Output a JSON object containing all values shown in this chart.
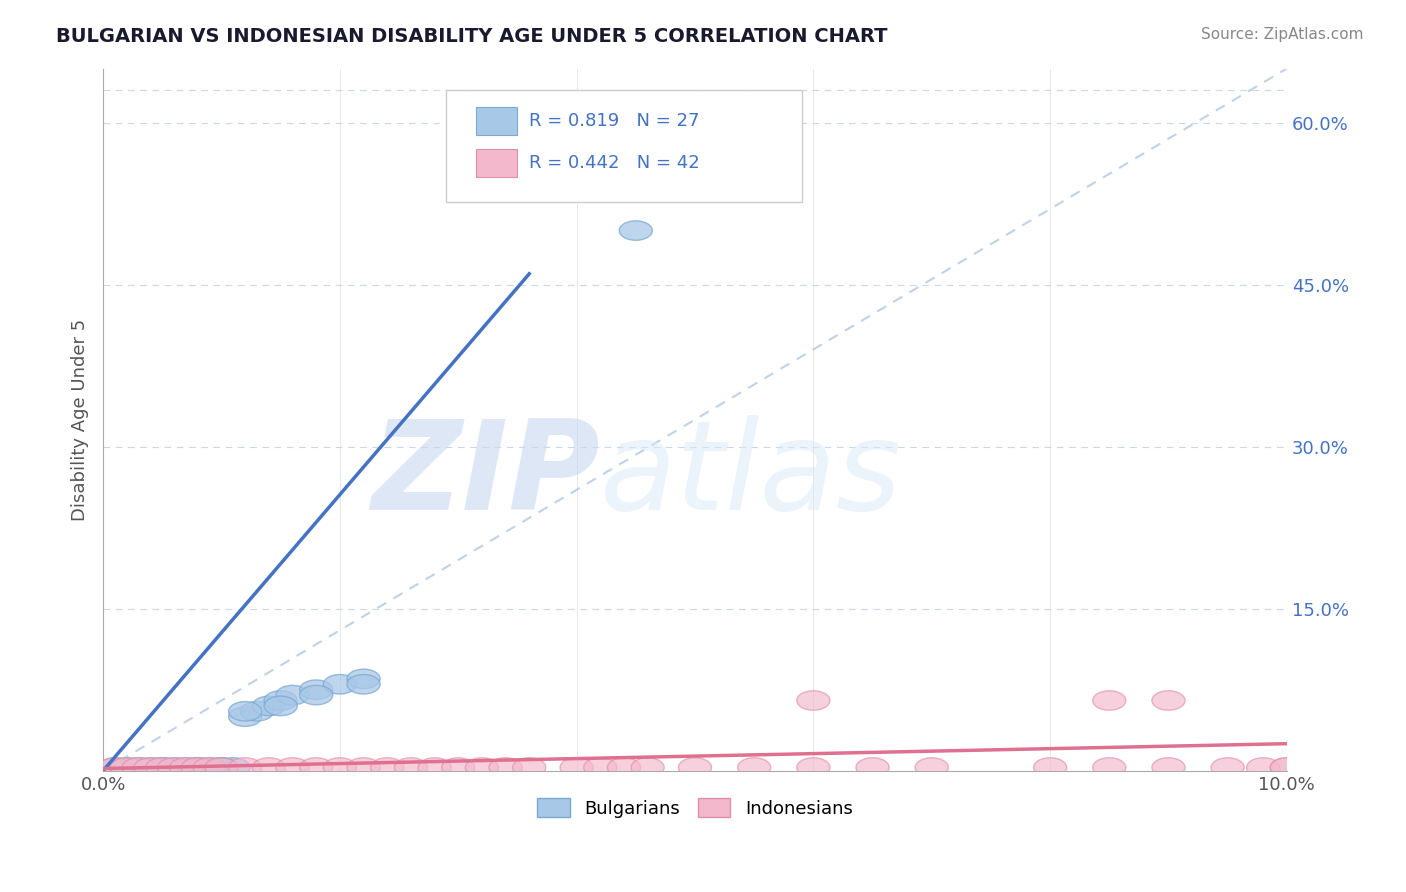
{
  "title": "BULGARIAN VS INDONESIAN DISABILITY AGE UNDER 5 CORRELATION CHART",
  "source": "Source: ZipAtlas.com",
  "ylabel": "Disability Age Under 5",
  "xlim": [
    0.0,
    0.1
  ],
  "ylim": [
    0.0,
    0.65
  ],
  "y_ticks": [
    0.0,
    0.15,
    0.3,
    0.45,
    0.6
  ],
  "y_tick_labels": [
    "",
    "15.0%",
    "30.0%",
    "45.0%",
    "60.0%"
  ],
  "bulgarian_color": "#a8c8e8",
  "bulgarian_edge_color": "#7aaad0",
  "indonesian_color": "#f4b8cc",
  "indonesian_edge_color": "#e090a8",
  "bulgarian_line_color": "#4472c4",
  "indonesian_line_color": "#e07090",
  "diagonal_color": "#b0c8e0",
  "grid_color": "#c8d8e8",
  "R_bulgarian": 0.819,
  "N_bulgarian": 27,
  "R_indonesian": 0.442,
  "N_indonesian": 42,
  "watermark_zip": "ZIP",
  "watermark_atlas": "atlas",
  "bg_x": [
    0.001,
    0.002,
    0.003,
    0.004,
    0.005,
    0.006,
    0.007,
    0.008,
    0.009,
    0.01,
    0.011,
    0.012,
    0.013,
    0.014,
    0.015,
    0.016,
    0.018,
    0.02,
    0.022,
    0.005,
    0.008,
    0.01,
    0.012,
    0.015,
    0.018,
    0.022,
    0.045
  ],
  "bg_y": [
    0.003,
    0.003,
    0.003,
    0.003,
    0.003,
    0.003,
    0.003,
    0.003,
    0.003,
    0.003,
    0.003,
    0.05,
    0.055,
    0.06,
    0.065,
    0.07,
    0.075,
    0.08,
    0.085,
    0.003,
    0.003,
    0.003,
    0.055,
    0.06,
    0.07,
    0.08,
    0.5
  ],
  "id_x": [
    0.001,
    0.002,
    0.003,
    0.004,
    0.005,
    0.006,
    0.007,
    0.008,
    0.009,
    0.01,
    0.012,
    0.014,
    0.016,
    0.018,
    0.02,
    0.022,
    0.024,
    0.026,
    0.028,
    0.03,
    0.032,
    0.034,
    0.036,
    0.04,
    0.042,
    0.044,
    0.046,
    0.05,
    0.055,
    0.06,
    0.065,
    0.07,
    0.08,
    0.085,
    0.09,
    0.095,
    0.098,
    0.1,
    0.06,
    0.085,
    0.09,
    0.1
  ],
  "id_y": [
    0.003,
    0.003,
    0.003,
    0.003,
    0.003,
    0.003,
    0.003,
    0.003,
    0.003,
    0.003,
    0.003,
    0.003,
    0.003,
    0.003,
    0.003,
    0.003,
    0.003,
    0.003,
    0.003,
    0.003,
    0.003,
    0.003,
    0.003,
    0.003,
    0.003,
    0.003,
    0.003,
    0.003,
    0.003,
    0.003,
    0.003,
    0.003,
    0.003,
    0.003,
    0.003,
    0.003,
    0.003,
    0.003,
    0.065,
    0.065,
    0.065,
    0.003
  ]
}
